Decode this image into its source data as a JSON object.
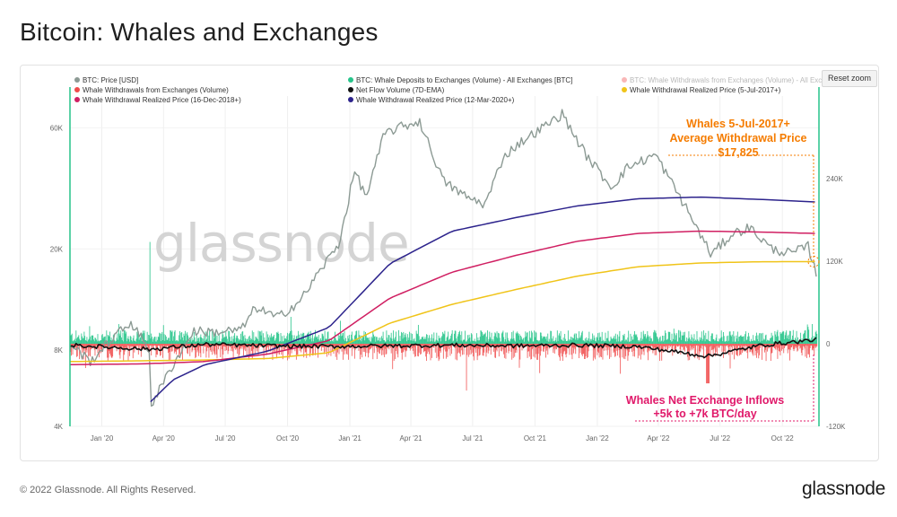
{
  "title": "Bitcoin: Whales and Exchanges",
  "reset_zoom_label": "Reset zoom",
  "footer": "© 2022 Glassnode. All Rights Reserved.",
  "brand": "glassnode",
  "watermark": "glassnode",
  "colors": {
    "price": "#8c9a94",
    "deposits": "#26c48a",
    "withdrawals": "#f04a4a",
    "netflow": "#111111",
    "rp2017": "#f0c419",
    "rp2018": "#d01f62",
    "rp2020": "#2c238c",
    "annotation_orange": "#f57c00",
    "annotation_pink": "#e0196a",
    "left_axis_line": "#26c48a"
  },
  "annotations": [
    {
      "id": "orange",
      "lines": [
        "Whales 5-Jul-2017+",
        "Average Withdrawal Price",
        "$17,825"
      ]
    },
    {
      "id": "pink",
      "lines": [
        "Whales Net Exchange Inflows",
        "+5k to +7k BTC/day"
      ]
    }
  ],
  "chart_data": {
    "type": "line",
    "title": "Bitcoin: Whales and Exchanges",
    "x_ticks": [
      "Jan '20",
      "Apr '20",
      "Jul '20",
      "Oct '20",
      "Jan '21",
      "Apr '21",
      "Jul '21",
      "Oct '21",
      "Jan '22",
      "Apr '22",
      "Jul '22",
      "Oct '22"
    ],
    "y_left": {
      "scale": "log",
      "ticks": [
        "4K",
        "8K",
        "20K",
        "60K"
      ],
      "ylim": [
        4000,
        80000
      ]
    },
    "y_right": {
      "scale": "linear",
      "ticks": [
        "-120K",
        "0",
        "120K",
        "240K"
      ],
      "ylim": [
        -120000,
        360000
      ]
    },
    "legend": [
      {
        "label": "BTC: Price [USD]",
        "color": "#8c9a94",
        "enabled": true
      },
      {
        "label": "BTC: Whale Deposits to Exchanges (Volume) - All Exchanges [BTC]",
        "color": "#26c48a",
        "enabled": true
      },
      {
        "label": "BTC: Whale Withdrawals from Exchanges (Volume) - All Exch",
        "color": "#f04a4a",
        "enabled": false
      },
      {
        "label": "Whale Withdrawals from Exchanges (Volume)",
        "color": "#f04a4a",
        "enabled": true
      },
      {
        "label": "Net Flow Volume (7D-EMA)",
        "color": "#111111",
        "enabled": true
      },
      {
        "label": "Whale Withdrawal Realized Price (5-Jul-2017+)",
        "color": "#f0c419",
        "enabled": true
      },
      {
        "label": "Whale Withdrawal Realized Price (16-Dec-2018+)",
        "color": "#d01f62",
        "enabled": true
      },
      {
        "label": "Whale Withdrawal Realized Price (12-Mar-2020+)",
        "color": "#2c238c",
        "enabled": true
      }
    ],
    "series": [
      {
        "name": "BTC: Price [USD]",
        "axis": "left",
        "x": [
          "2019-11-15",
          "2019-12-15",
          "2020-01-15",
          "2020-02-13",
          "2020-03-12",
          "2020-03-13",
          "2020-04-15",
          "2020-05-15",
          "2020-06-15",
          "2020-07-25",
          "2020-08-15",
          "2020-09-15",
          "2020-10-20",
          "2020-11-15",
          "2020-12-16",
          "2021-01-08",
          "2021-01-25",
          "2021-02-21",
          "2021-03-13",
          "2021-04-14",
          "2021-05-19",
          "2021-06-22",
          "2021-07-20",
          "2021-08-15",
          "2021-09-07",
          "2021-10-20",
          "2021-11-10",
          "2021-12-15",
          "2022-01-22",
          "2022-02-15",
          "2022-03-28",
          "2022-05-12",
          "2022-06-18",
          "2022-07-20",
          "2022-08-14",
          "2022-09-15",
          "2022-10-15",
          "2022-11-08",
          "2022-11-21"
        ],
        "values": [
          8500,
          7200,
          8800,
          10300,
          7900,
          4800,
          7000,
          9500,
          9400,
          9600,
          11800,
          10700,
          12500,
          16000,
          21000,
          40500,
          32000,
          57000,
          60000,
          63500,
          37000,
          32000,
          30000,
          46000,
          52000,
          62000,
          68000,
          47000,
          35000,
          42000,
          47000,
          29000,
          19000,
          23000,
          24300,
          20000,
          19200,
          20500,
          15700
        ]
      },
      {
        "name": "Whale Withdrawal Realized Price (5-Jul-2017+)",
        "axis": "left",
        "x": [
          "2019-11-15",
          "2020-03-01",
          "2020-06-01",
          "2020-09-01",
          "2020-12-01",
          "2021-03-01",
          "2021-06-01",
          "2021-09-01",
          "2021-12-01",
          "2022-03-01",
          "2022-06-01",
          "2022-09-01",
          "2022-11-21"
        ],
        "values": [
          7200,
          7250,
          7300,
          7400,
          7800,
          10200,
          12100,
          13800,
          15600,
          17000,
          17600,
          17800,
          17825
        ]
      },
      {
        "name": "Whale Withdrawal Realized Price (16-Dec-2018+)",
        "axis": "left",
        "x": [
          "2019-11-15",
          "2020-03-01",
          "2020-06-01",
          "2020-09-01",
          "2020-12-01",
          "2021-03-01",
          "2021-06-01",
          "2021-09-01",
          "2021-12-01",
          "2022-03-01",
          "2022-06-01",
          "2022-09-01",
          "2022-11-21"
        ],
        "values": [
          7000,
          7050,
          7200,
          7700,
          8700,
          12800,
          16200,
          18800,
          21400,
          23000,
          23500,
          23300,
          23000
        ]
      },
      {
        "name": "Whale Withdrawal Realized Price (12-Mar-2020+)",
        "axis": "left",
        "x": [
          "2020-03-13",
          "2020-04-15",
          "2020-06-01",
          "2020-09-01",
          "2020-12-01",
          "2021-03-01",
          "2021-06-01",
          "2021-09-01",
          "2021-12-01",
          "2022-03-01",
          "2022-06-01",
          "2022-09-01",
          "2022-11-21"
        ],
        "values": [
          5000,
          6100,
          7000,
          7900,
          9800,
          17500,
          23500,
          26500,
          29500,
          31500,
          32000,
          31300,
          30600
        ]
      },
      {
        "name": "Net Flow Volume (7D-EMA)",
        "axis": "right",
        "x": [
          "2019-11-15",
          "2020-03-12",
          "2020-06-01",
          "2020-09-01",
          "2020-12-01",
          "2021-03-01",
          "2021-06-01",
          "2021-09-01",
          "2021-12-01",
          "2022-03-01",
          "2022-06-13",
          "2022-09-01",
          "2022-11-21"
        ],
        "values": [
          -2000,
          -8000,
          -1000,
          -3000,
          -4000,
          -3000,
          -2000,
          -3000,
          -2000,
          -4000,
          -18000,
          -2000,
          6000
        ]
      }
    ],
    "bars": [
      {
        "name": "Whale Deposits to Exchanges (Volume)",
        "axis": "right",
        "typical_daily_max": 20000,
        "peak_date": "2020-03-12",
        "peak": 148000
      },
      {
        "name": "Whale Withdrawals from Exchanges (Volume)",
        "axis": "right",
        "typical_daily_min": -25000,
        "peak_date": "2021-06-22",
        "peak": -68000
      }
    ]
  }
}
